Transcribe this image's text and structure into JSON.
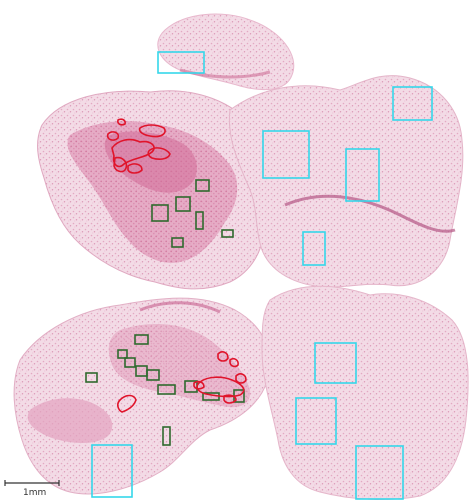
{
  "scale_bar": {
    "label": "1mm"
  },
  "colors": {
    "background": "#ffffff",
    "tissue_light": "#f1d5e2",
    "tissue_mid": "#e6aac6",
    "tissue_dense": "#d7799f",
    "tissue_edge": "#c85f8e",
    "region_cyan": "#35d7ea",
    "region_green": "#2f6a2e",
    "region_red": "#e0142b"
  }
}
